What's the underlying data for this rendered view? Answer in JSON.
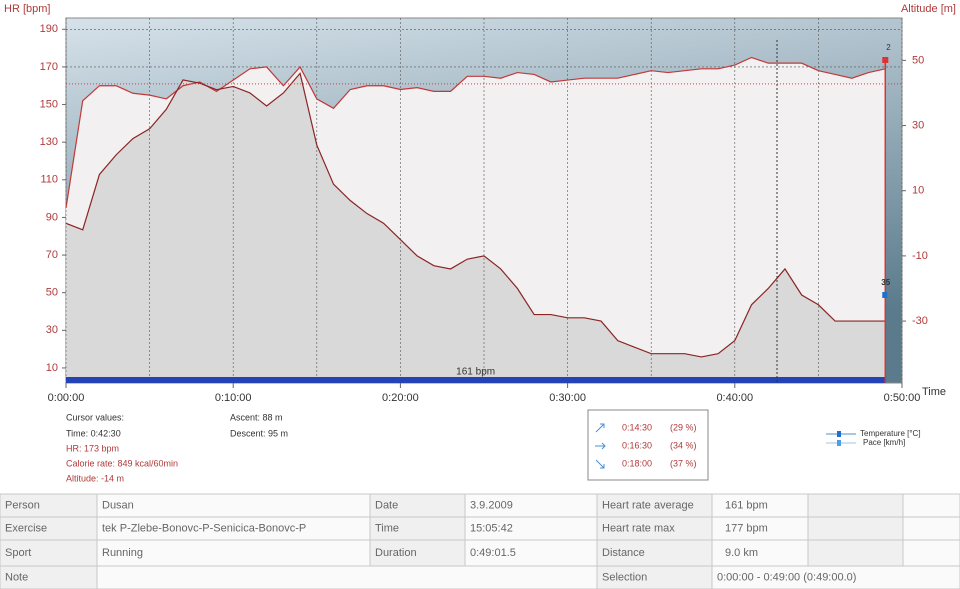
{
  "chart_data": {
    "type": "line",
    "y_label": "HR [bpm]",
    "y2_label": "Altitude [m]",
    "x_label": "Time",
    "x": [
      0,
      1,
      2,
      3,
      4,
      5,
      6,
      7,
      8,
      9,
      10,
      11,
      12,
      13,
      14,
      15,
      16,
      17,
      18,
      19,
      20,
      21,
      22,
      23,
      24,
      25,
      26,
      27,
      28,
      29,
      30,
      31,
      32,
      33,
      34,
      35,
      36,
      37,
      38,
      39,
      40,
      41,
      42,
      43,
      44,
      45,
      46,
      47,
      48,
      49
    ],
    "series": [
      {
        "name": "HR",
        "color": "#c03a3a",
        "fill": "#f2f0f0",
        "values": [
          95,
          152,
          160,
          160,
          156,
          155,
          153,
          160,
          162,
          157,
          163,
          169,
          170,
          160,
          170,
          153,
          148,
          158,
          160,
          160,
          158,
          159,
          157,
          157,
          165,
          165,
          164,
          167,
          166,
          162,
          163,
          164,
          164,
          164,
          166,
          168,
          167,
          168,
          169,
          169,
          171,
          175,
          172,
          172,
          172,
          168,
          166,
          164,
          167,
          169
        ]
      },
      {
        "name": "Altitude",
        "axis": "y2",
        "color": "#8b2424",
        "fill": "#d9d9d9",
        "values": [
          0,
          -2,
          15,
          21,
          26,
          29,
          35,
          44,
          43,
          41,
          42,
          40,
          36,
          40,
          46,
          24,
          12,
          7,
          3,
          0,
          -5,
          -10,
          -13,
          -14,
          -11,
          -10,
          -14,
          -20,
          -28,
          -28,
          -29,
          -29,
          -30,
          -36,
          -38,
          -40,
          -40,
          -40,
          -41,
          -40,
          -36,
          -25,
          -20,
          -14,
          -22,
          -25,
          -30,
          -30,
          -30,
          -30
        ]
      }
    ],
    "xlim": [
      0,
      50
    ],
    "xticks": [
      {
        "value": 0,
        "label": "0:00:00"
      },
      {
        "value": 10,
        "label": "0:10:00"
      },
      {
        "value": 20,
        "label": "0:20:00"
      },
      {
        "value": 30,
        "label": "0:30:00"
      },
      {
        "value": 40,
        "label": "0:40:00"
      },
      {
        "value": 50,
        "label": "0:50:00"
      }
    ],
    "ylim": [
      2,
      196
    ],
    "yticks": [
      10,
      30,
      50,
      70,
      90,
      110,
      130,
      150,
      170,
      190
    ],
    "y2lim": [
      -49,
      63
    ],
    "y2ticks": [
      -30,
      -10,
      10,
      30,
      50
    ],
    "average": {
      "value": 161,
      "label": "161 bpm"
    },
    "end_labels": [
      "2",
      "35"
    ],
    "grid": true
  },
  "cursor": {
    "title": "Cursor values:",
    "time": "Time: 0:42:30",
    "hr": "HR: 173 bpm",
    "calorie": "Calorie rate: 849 kcal/60min",
    "altitude": "Altitude: -14 m",
    "ascent": "Ascent: 88 m",
    "descent": "Descent: 95 m"
  },
  "zones": [
    [
      "0:14:30",
      "(29 %)"
    ],
    [
      "0:16:30",
      "(34 %)"
    ],
    [
      "0:18:00",
      "(37 %)"
    ]
  ],
  "legend": [
    "Temperature [°C]",
    "Pace [km/h]"
  ],
  "table": {
    "rows": [
      [
        "Person",
        "Dusan",
        "Date",
        "3.9.2009",
        "Heart rate average",
        "161 bpm"
      ],
      [
        "Exercise",
        "tek P-Zlebe-Bonovc-P-Senicica-Bonovc-P",
        "Time",
        "15:05:42",
        "Heart rate max",
        "177 bpm"
      ],
      [
        "Sport",
        "Running",
        "Duration",
        "0:49:01.5",
        "Distance",
        "9.0 km"
      ],
      [
        "Note",
        "Selection",
        "0:00:00 - 0:49:00 (0:49:00.0)"
      ]
    ]
  }
}
